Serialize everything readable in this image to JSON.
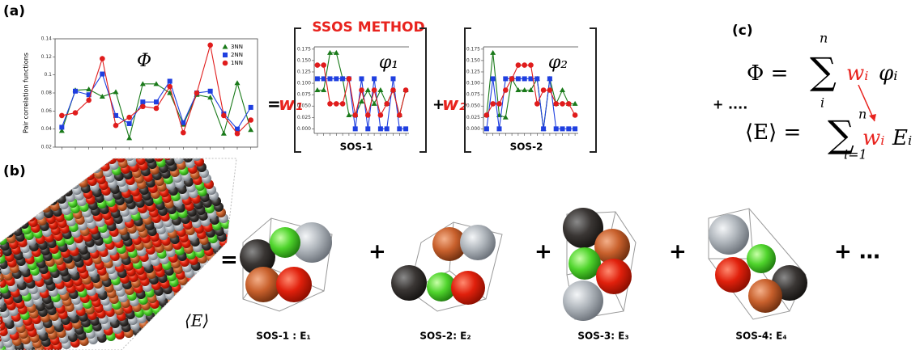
{
  "panel_labels": {
    "a": "(a)",
    "b": "(b)",
    "c": "(c)"
  },
  "method_title": "SSOS METHOD",
  "operators": {
    "eq": "=",
    "w1": "w₁",
    "plus_w2": "+",
    "w2": "w₂",
    "plus_more": "+ ....",
    "b_eq": "=",
    "b_plus": "+",
    "b_plus_more": "+ …"
  },
  "chart_labels": [
    "SOS-1",
    "SOS-2"
  ],
  "formula": {
    "phi": "Φ =",
    "sum1": "∑",
    "sum1_upper": "n",
    "sum1_lower": "i",
    "w1": "wᵢ",
    "term1": "φᵢ",
    "avg_e": "⟨E⟩ =",
    "sum2": "∑",
    "sum2_upper": "n",
    "sum2_lower": "i=1",
    "w2": "wᵢ",
    "term2": "Eᵢ"
  },
  "slab_label": "⟨E⟩",
  "sos_labels": [
    "SOS-1 : E₁",
    "SOS-2: E₂",
    "SOS-3: E₃",
    "SOS-4: E₄"
  ],
  "chart_data": [
    {
      "type": "line",
      "title": "Φ",
      "ylabel": "Pair correlation functions",
      "categories": [
        null,
        null,
        null,
        null,
        null,
        null,
        null,
        null,
        null,
        null,
        null,
        null,
        null,
        null,
        null
      ],
      "ylim": [
        0.02,
        0.14
      ],
      "yticks": [
        0.02,
        0.04,
        0.06,
        0.08,
        0.1,
        0.12,
        0.14
      ],
      "frame": true,
      "legend": "upper right",
      "series": [
        {
          "name": "3NN",
          "color": "#1a7a1a",
          "marker": "triangle",
          "values": [
            0.038,
            0.083,
            0.084,
            0.076,
            0.081,
            0.03,
            0.09,
            0.09,
            0.08,
            0.045,
            0.078,
            0.075,
            0.035,
            0.091,
            0.039
          ]
        },
        {
          "name": "2NN",
          "color": "#1f3fe0",
          "marker": "square",
          "values": [
            0.042,
            0.082,
            0.078,
            0.101,
            0.055,
            0.046,
            0.07,
            0.07,
            0.093,
            0.047,
            0.08,
            0.082,
            0.057,
            0.04,
            0.064
          ]
        },
        {
          "name": "1NN",
          "color": "#e01c1c",
          "marker": "circle",
          "values": [
            0.055,
            0.058,
            0.072,
            0.118,
            0.044,
            0.053,
            0.065,
            0.063,
            0.087,
            0.036,
            0.08,
            0.133,
            0.055,
            0.035,
            0.05
          ]
        }
      ]
    },
    {
      "type": "line",
      "title": "φ₁",
      "categories": [
        null,
        null,
        null,
        null,
        null,
        null,
        null,
        null,
        null,
        null,
        null,
        null,
        null,
        null,
        null
      ],
      "ylim": [
        -0.01,
        0.18
      ],
      "yticks": [
        {
          "value": 0,
          "label": "0.000"
        },
        {
          "value": 0.025,
          "label": "0.025"
        },
        {
          "value": 0.05,
          "label": "0.050"
        },
        {
          "value": 0.075,
          "label": "0.075"
        },
        {
          "value": 0.1,
          "label": "0.100"
        },
        {
          "value": 0.125,
          "label": "0.125"
        },
        {
          "value": 0.15,
          "label": "0.150"
        },
        {
          "value": 0.175,
          "label": "0.175"
        }
      ],
      "frame": false,
      "series": [
        {
          "color": "#1a7a1a",
          "marker": "triangle",
          "values": [
            0.085,
            0.085,
            0.167,
            0.167,
            0.11,
            0.03,
            0.03,
            0.06,
            0.085,
            0.055,
            0.085,
            0.055,
            0.085,
            0.03,
            0.085
          ]
        },
        {
          "color": "#1f3fe0",
          "marker": "square",
          "values": [
            0.11,
            0.11,
            0.11,
            0.11,
            0.11,
            0.11,
            0,
            0.11,
            0,
            0.11,
            0,
            0,
            0.11,
            0,
            0
          ]
        },
        {
          "color": "#e01c1c",
          "marker": "circle",
          "values": [
            0.14,
            0.14,
            0.055,
            0.055,
            0.055,
            0.11,
            0.03,
            0.085,
            0.03,
            0.085,
            0.03,
            0.055,
            0.085,
            0.03,
            0.085
          ]
        }
      ]
    },
    {
      "type": "line",
      "title": "φ₂",
      "categories": [
        null,
        null,
        null,
        null,
        null,
        null,
        null,
        null,
        null,
        null,
        null,
        null,
        null,
        null,
        null
      ],
      "ylim": [
        -0.01,
        0.18
      ],
      "yticks": [
        {
          "value": 0,
          "label": "0.000"
        },
        {
          "value": 0.025,
          "label": "0.025"
        },
        {
          "value": 0.05,
          "label": "0.050"
        },
        {
          "value": 0.075,
          "label": "0.075"
        },
        {
          "value": 0.1,
          "label": "0.100"
        },
        {
          "value": 0.125,
          "label": "0.125"
        },
        {
          "value": 0.15,
          "label": "0.150"
        },
        {
          "value": 0.175,
          "label": "0.175"
        }
      ],
      "frame": false,
      "series": [
        {
          "color": "#1a7a1a",
          "marker": "triangle",
          "values": [
            0.03,
            0.167,
            0.03,
            0.025,
            0.11,
            0.085,
            0.085,
            0.085,
            0.11,
            0,
            0.11,
            0.055,
            0.085,
            0.055,
            0.055
          ]
        },
        {
          "color": "#1f3fe0",
          "marker": "square",
          "values": [
            0,
            0.11,
            0,
            0.11,
            0.11,
            0.11,
            0.11,
            0.11,
            0.11,
            0,
            0.11,
            0,
            0,
            0,
            0
          ]
        },
        {
          "color": "#e01c1c",
          "marker": "circle",
          "values": [
            0.03,
            0.055,
            0.055,
            0.085,
            0.11,
            0.14,
            0.14,
            0.14,
            0.055,
            0.085,
            0.085,
            0.055,
            0.055,
            0.055,
            0.03
          ]
        }
      ]
    }
  ]
}
